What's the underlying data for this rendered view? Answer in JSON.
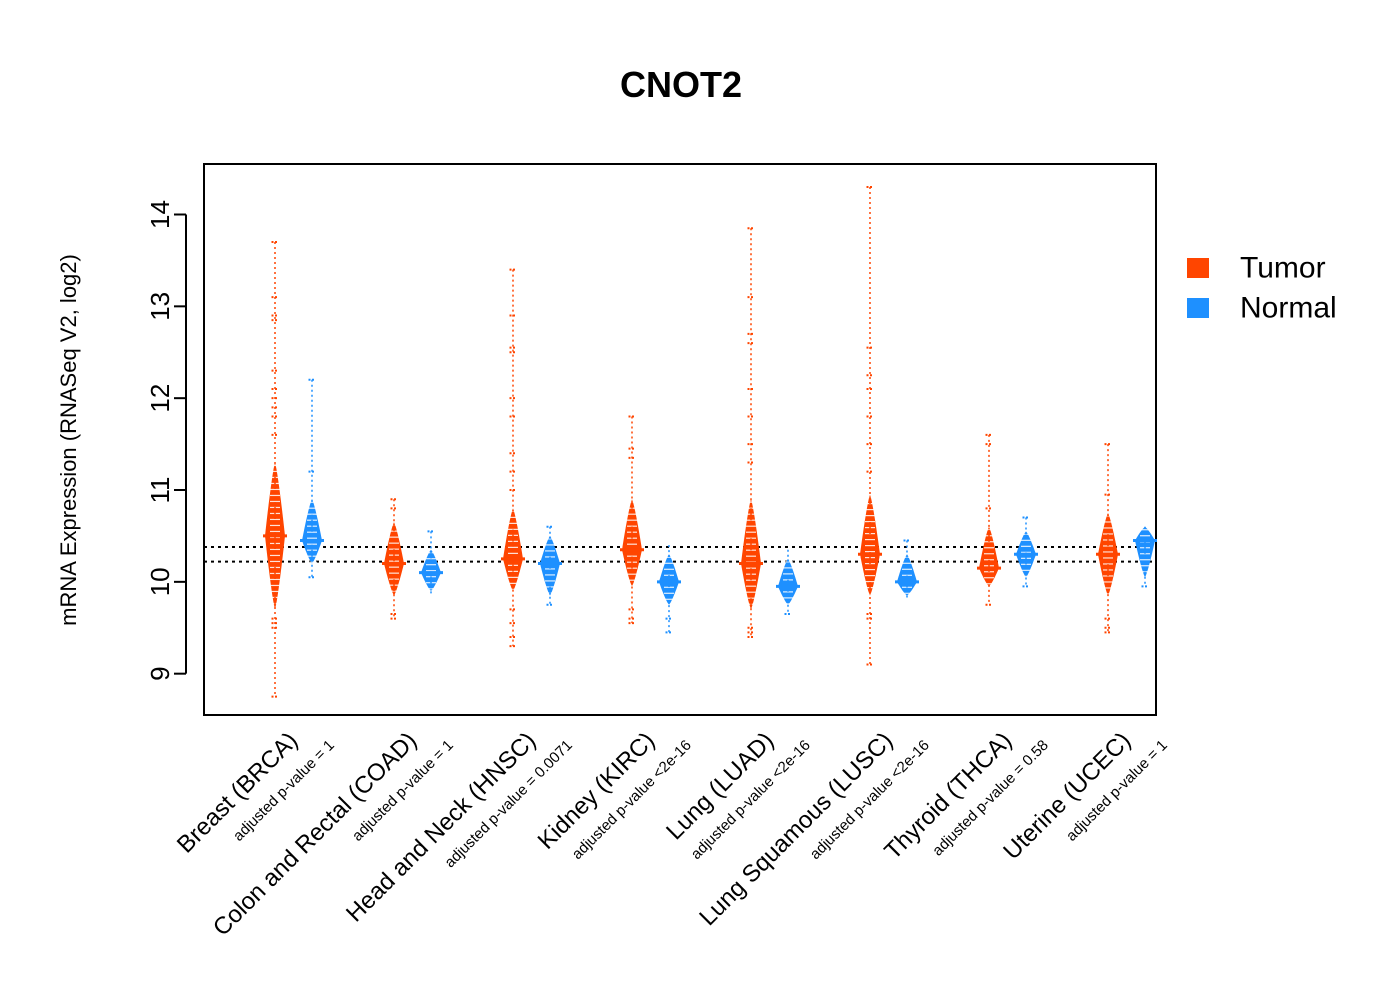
{
  "chart_data": {
    "type": "beanplot",
    "title": "CNOT2",
    "xlabel": "",
    "ylabel": "mRNA Expression (RNASeq V2, log2)",
    "ylim": [
      8.55,
      14.55
    ],
    "yticks": [
      "9",
      "10",
      "11",
      "12",
      "13",
      "14"
    ],
    "reference_lines": [
      10.22,
      10.38
    ],
    "colors": {
      "Tumor": "#ff4500",
      "Normal": "#1e90ff"
    },
    "legend": {
      "position": "right",
      "entries": [
        "Tumor",
        "Normal"
      ]
    },
    "categories": [
      "Breast (BRCA)",
      "Colon and Rectal (COAD)",
      "Head and Neck (HNSC)",
      "Kidney (KIRC)",
      "Lung (LUAD)",
      "Lung Squamous (LUSC)",
      "Thyroid (THCA)",
      "Uterine (UCEC)"
    ],
    "pvalues": [
      "adjusted p-value = 1",
      "adjusted p-value = 1",
      "adjusted p-value = 0.0071",
      "adjusted p-value <2e-16",
      "adjusted p-value <2e-16",
      "adjusted p-value <2e-16",
      "adjusted p-value = 0.58",
      "adjusted p-value = 1"
    ],
    "series": [
      {
        "name": "Tumor",
        "groups": [
          {
            "median": 10.5,
            "min": 8.75,
            "max": 13.7,
            "core_low": 9.7,
            "core_high": 11.3,
            "outliers": [
              8.75,
              9.5,
              9.55,
              9.6,
              11.6,
              11.8,
              11.9,
              12.0,
              12.1,
              12.3,
              12.85,
              12.9,
              13.1,
              13.7
            ]
          },
          {
            "median": 10.2,
            "min": 9.6,
            "max": 10.9,
            "core_low": 9.85,
            "core_high": 10.65,
            "outliers": [
              9.6,
              9.65,
              10.8,
              10.9
            ]
          },
          {
            "median": 10.25,
            "min": 9.3,
            "max": 13.4,
            "core_low": 9.9,
            "core_high": 10.8,
            "outliers": [
              9.3,
              9.4,
              9.55,
              9.7,
              11.0,
              11.2,
              11.4,
              11.8,
              12.0,
              12.5,
              12.55,
              12.9,
              13.4
            ]
          },
          {
            "median": 10.35,
            "min": 9.55,
            "max": 11.8,
            "core_low": 9.95,
            "core_high": 10.9,
            "outliers": [
              9.55,
              9.6,
              9.7,
              11.35,
              11.45,
              11.8
            ]
          },
          {
            "median": 10.2,
            "min": 9.4,
            "max": 13.85,
            "core_low": 9.7,
            "core_high": 10.9,
            "outliers": [
              9.4,
              9.45,
              9.5,
              11.3,
              11.5,
              11.8,
              12.1,
              12.6,
              12.7,
              13.1,
              13.85
            ]
          },
          {
            "median": 10.3,
            "min": 9.1,
            "max": 14.3,
            "core_low": 9.85,
            "core_high": 10.95,
            "outliers": [
              9.1,
              9.6,
              9.65,
              11.2,
              11.5,
              11.8,
              12.1,
              12.25,
              12.55,
              14.3
            ]
          },
          {
            "median": 10.15,
            "min": 9.75,
            "max": 11.6,
            "core_low": 9.95,
            "core_high": 10.6,
            "outliers": [
              9.75,
              10.8,
              11.5,
              11.6
            ]
          },
          {
            "median": 10.3,
            "min": 9.45,
            "max": 11.5,
            "core_low": 9.85,
            "core_high": 10.75,
            "outliers": [
              9.45,
              9.5,
              9.6,
              10.95,
              11.5
            ]
          }
        ]
      },
      {
        "name": "Normal",
        "groups": [
          {
            "median": 10.45,
            "min": 10.05,
            "max": 12.2,
            "core_low": 10.2,
            "core_high": 10.9,
            "outliers": [
              10.05,
              11.2,
              12.2
            ]
          },
          {
            "median": 10.1,
            "min": 9.85,
            "max": 10.55,
            "core_low": 9.9,
            "core_high": 10.35,
            "outliers": [
              10.55
            ]
          },
          {
            "median": 10.2,
            "min": 9.75,
            "max": 10.6,
            "core_low": 9.85,
            "core_high": 10.5,
            "outliers": [
              9.75,
              10.6
            ]
          },
          {
            "median": 10.0,
            "min": 9.45,
            "max": 10.4,
            "core_low": 9.75,
            "core_high": 10.3,
            "outliers": [
              9.45,
              9.6
            ]
          },
          {
            "median": 9.95,
            "min": 9.65,
            "max": 10.35,
            "core_low": 9.75,
            "core_high": 10.25,
            "outliers": [
              9.65
            ]
          },
          {
            "median": 10.0,
            "min": 9.8,
            "max": 10.45,
            "core_low": 9.85,
            "core_high": 10.3,
            "outliers": [
              10.45
            ]
          },
          {
            "median": 10.3,
            "min": 9.95,
            "max": 10.7,
            "core_low": 10.05,
            "core_high": 10.55,
            "outliers": [
              9.95,
              10.7
            ]
          },
          {
            "median": 10.45,
            "min": 9.95,
            "max": 10.6,
            "core_low": 10.05,
            "core_high": 10.6,
            "outliers": [
              9.95
            ]
          }
        ]
      }
    ]
  }
}
